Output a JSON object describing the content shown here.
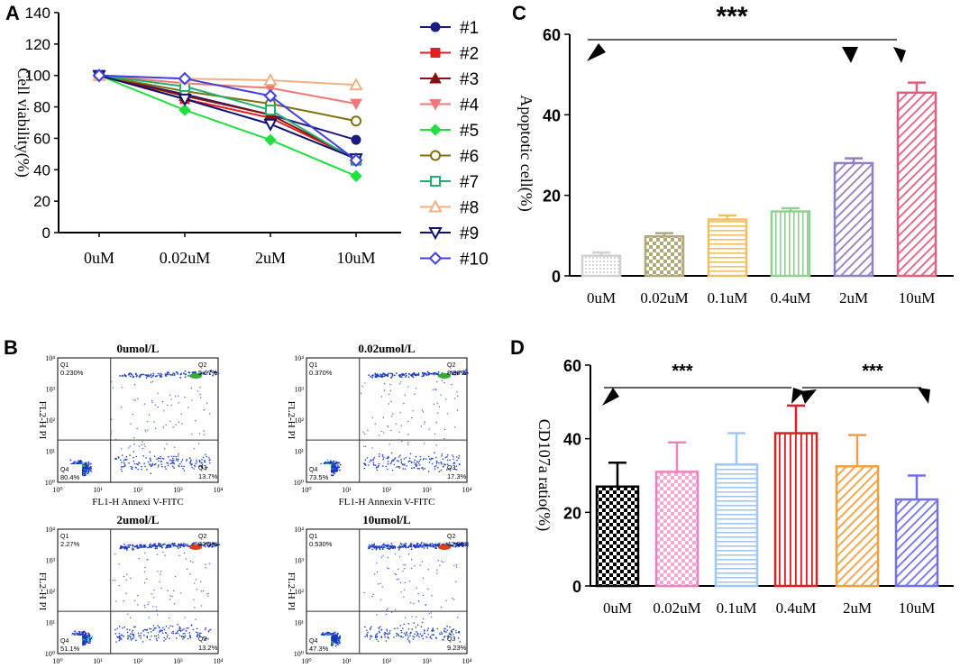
{
  "panel_labels": {
    "a": "A",
    "b": "B",
    "c": "C",
    "d": "D"
  },
  "chart_data": [
    {
      "id": "A",
      "type": "line",
      "title": "",
      "xlabel": "",
      "ylabel": "Cell viability(%)",
      "ylim": [
        0,
        140
      ],
      "yticks": [
        0,
        20,
        40,
        60,
        80,
        100,
        120,
        140
      ],
      "categories": [
        "0uM",
        "0.02uM",
        "2uM",
        "10uM"
      ],
      "series": [
        {
          "name": "#1",
          "marker": "circle",
          "color": "#1a1a80",
          "values": [
            100,
            88,
            75,
            59
          ]
        },
        {
          "name": "#2",
          "marker": "square",
          "color": "#e02020",
          "values": [
            100,
            85,
            73,
            47
          ]
        },
        {
          "name": "#3",
          "marker": "triangle-up",
          "color": "#8b1010",
          "values": [
            100,
            87,
            75,
            47
          ]
        },
        {
          "name": "#4",
          "marker": "triangle-down",
          "color": "#f07878",
          "values": [
            100,
            95,
            92,
            82
          ]
        },
        {
          "name": "#5",
          "marker": "diamond",
          "color": "#20e040",
          "values": [
            100,
            78,
            59,
            36
          ]
        },
        {
          "name": "#6",
          "marker": "circle-open",
          "color": "#807010",
          "values": [
            100,
            90,
            82,
            71
          ]
        },
        {
          "name": "#7",
          "marker": "square-open",
          "color": "#20b070",
          "values": [
            100,
            93,
            78,
            46
          ]
        },
        {
          "name": "#8",
          "marker": "triangle-open",
          "color": "#f0b080",
          "values": [
            100,
            98,
            97,
            94
          ]
        },
        {
          "name": "#9",
          "marker": "tri-down-open",
          "color": "#101070",
          "values": [
            100,
            85,
            69,
            47
          ]
        },
        {
          "name": "#10",
          "marker": "diamond-open",
          "color": "#4040e0",
          "values": [
            100,
            98,
            87,
            46
          ]
        }
      ]
    },
    {
      "id": "C",
      "type": "bar",
      "title": "",
      "xlabel": "",
      "ylabel": "Apoptotic cell(%)",
      "ylim": [
        0,
        60
      ],
      "yticks": [
        0,
        20,
        40,
        60
      ],
      "categories": [
        "0uM",
        "0.02uM",
        "0.1uM",
        "0.4uM",
        "2uM",
        "10uM"
      ],
      "values": [
        5,
        9.8,
        14,
        16,
        28,
        45.5
      ],
      "errors": [
        0.8,
        0.8,
        1.0,
        0.8,
        1.2,
        2.5
      ],
      "colors": [
        "#d0d0d0",
        "#b0a878",
        "#f0c060",
        "#90d090",
        "#9080c0",
        "#e06080"
      ],
      "patterns": [
        "dots",
        "checker",
        "hlines",
        "vlines",
        "diag",
        "diag"
      ],
      "significance": {
        "label": "***"
      }
    },
    {
      "id": "D",
      "type": "bar",
      "title": "",
      "xlabel": "",
      "ylabel": "CD107a ratio(%)",
      "ylim": [
        0,
        60
      ],
      "yticks": [
        0,
        20,
        40,
        60
      ],
      "categories": [
        "0uM",
        "0.02uM",
        "0.1uM",
        "0.4uM",
        "2uM",
        "10uM"
      ],
      "values": [
        27,
        31,
        33,
        41.5,
        32.5,
        23.5
      ],
      "errors": [
        6.5,
        8,
        8.5,
        7.5,
        8.5,
        6.5
      ],
      "colors": [
        "#000000",
        "#f080c0",
        "#a0c8f0",
        "#e02020",
        "#f0a040",
        "#7070f0"
      ],
      "patterns": [
        "checker",
        "checker",
        "hlines",
        "vlines",
        "diag",
        "diag"
      ],
      "significance": [
        {
          "label": "***"
        },
        {
          "label": "***"
        }
      ]
    }
  ],
  "flow_panels": [
    {
      "title": "0umol/L",
      "q1": "0.230%",
      "q2": "5.67%",
      "q3": "13.7%",
      "q4": "80.4%",
      "xlabel": "FL1-H Annexi V-FITC",
      "ylabel": "FL2-H PI"
    },
    {
      "title": "0.02umol/L",
      "q1": "0.370%",
      "q2": "8.88%",
      "q3": "17.3%",
      "q4": "73.5%",
      "xlabel": "FL1-H Annexin V-FITC",
      "ylabel": "FL2-H PI"
    },
    {
      "title": "2umol/L",
      "q1": "2.27%",
      "q2": "33.5%",
      "q3": "13.2%",
      "q4": "51.1%",
      "xlabel": "FL1-H Annexin V-FITC",
      "ylabel": "FL2-H PI"
    },
    {
      "title": "10umol/L",
      "q1": "0.530%",
      "q2": "42.9%",
      "q3": "9.23%",
      "q4": "47.3%",
      "xlabel": "FL1-H Annexin V-FITC",
      "ylabel": "FL2-H PI"
    }
  ],
  "flow_static": {
    "quad_names": [
      "Q1",
      "Q2",
      "Q3",
      "Q4"
    ],
    "exp_ticks": [
      "10⁰",
      "10¹",
      "10²",
      "10³",
      "10⁴"
    ]
  }
}
